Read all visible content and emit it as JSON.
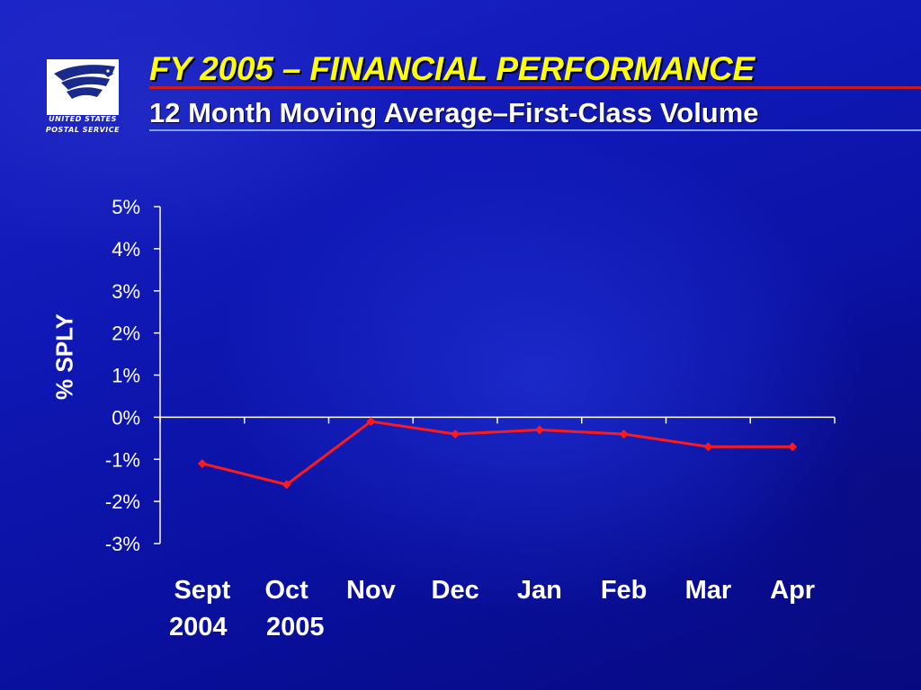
{
  "header": {
    "title": "FY 2005 – FINANCIAL PERFORMANCE",
    "subtitle": "12 Month Moving Average–First-Class Volume"
  },
  "logo": {
    "line1": "UNITED STATES",
    "line2": "POSTAL SERVICE"
  },
  "colors": {
    "title": "#ffff00",
    "series": "#ff1a1a",
    "axis": "#ffffff",
    "rule_red": "#cc1b1b",
    "rule_blue": "#7ea0ff"
  },
  "chart_data": {
    "type": "line",
    "title": "",
    "ylabel": "% SPLY",
    "xlabel": [
      "2004",
      "2005"
    ],
    "categories": [
      "Sept",
      "Oct",
      "Nov",
      "Dec",
      "Jan",
      "Feb",
      "Mar",
      "Apr"
    ],
    "series": [
      {
        "values": [
          -1.1,
          -1.6,
          -0.1,
          -0.4,
          -0.3,
          -0.4,
          -0.7,
          -0.7
        ]
      }
    ],
    "ylim": [
      -3,
      5
    ],
    "yticks": [
      5,
      4,
      3,
      2,
      1,
      0,
      -1,
      -2,
      -3
    ],
    "ytick_labels": [
      "5%",
      "4%",
      "3%",
      "2%",
      "1%",
      "0%",
      "-1%",
      "-2%",
      "-3%"
    ],
    "grid": false,
    "legend": "none"
  }
}
